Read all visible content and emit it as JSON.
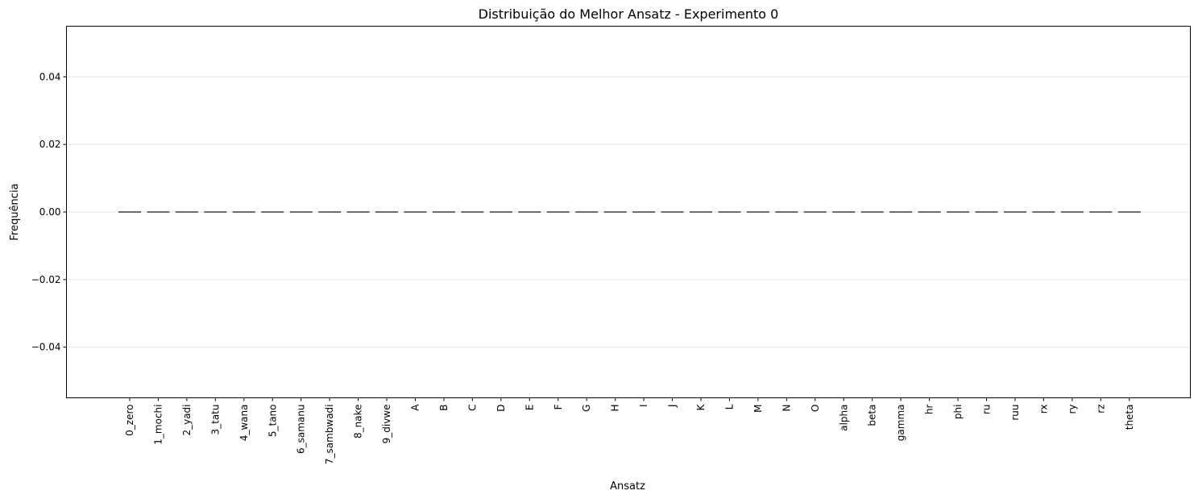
{
  "chart_data": {
    "type": "bar",
    "title": "Distribuição do Melhor Ansatz - Experimento 0",
    "xlabel": "Ansatz",
    "ylabel": "Frequência",
    "ylim": [
      -0.055,
      0.055
    ],
    "yticks": [
      -0.04,
      -0.02,
      0.0,
      0.02,
      0.04
    ],
    "ytick_labels": [
      "−0.04",
      "−0.02",
      "0.00",
      "0.02",
      "0.04"
    ],
    "grid": "y",
    "categories": [
      "0_zero",
      "1_mochi",
      "2_yadi",
      "3_tatu",
      "4_wana",
      "5_tano",
      "6_samanu",
      "7_sambwadi",
      "8_nake",
      "9_divwe",
      "A",
      "B",
      "C",
      "D",
      "E",
      "F",
      "G",
      "H",
      "I",
      "J",
      "K",
      "L",
      "M",
      "N",
      "O",
      "alpha",
      "beta",
      "gamma",
      "hr",
      "phi",
      "ru",
      "ruu",
      "rx",
      "ry",
      "rz",
      "theta"
    ],
    "values": [
      0,
      0,
      0,
      0,
      0,
      0,
      0,
      0,
      0,
      0,
      0,
      0,
      0,
      0,
      0,
      0,
      0,
      0,
      0,
      0,
      0,
      0,
      0,
      0,
      0,
      0,
      0,
      0,
      0,
      0,
      0,
      0,
      0,
      0,
      0,
      0
    ],
    "bar_color": "#3b3b3b"
  }
}
